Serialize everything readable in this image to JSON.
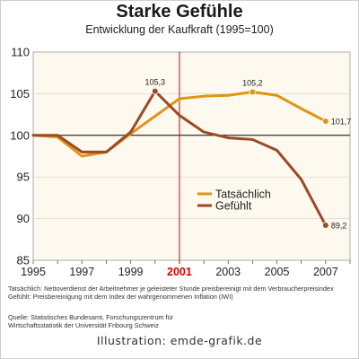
{
  "chart_data": {
    "type": "line",
    "title": "Starke Gefühle",
    "subtitle": "Entwicklung der Kaufkraft (1995=100)",
    "x": [
      1995,
      1996,
      1997,
      1998,
      1999,
      2000,
      2001,
      2002,
      2003,
      2004,
      2005,
      2006,
      2007
    ],
    "xticks": [
      "1995",
      "1997",
      "1999",
      "2001",
      "2003",
      "2005",
      "2007"
    ],
    "yticks": [
      "85",
      "90",
      "95",
      "100",
      "105",
      "110"
    ],
    "xlim": [
      1995,
      2008
    ],
    "ylim": [
      85,
      110
    ],
    "reference_line": {
      "y": 100,
      "color": "#000000"
    },
    "highlight_x": {
      "x": 2001,
      "label": "2001",
      "color": "#d40000"
    },
    "legend_position": "center-right",
    "series": [
      {
        "name": "Tatsächlich",
        "color": "#e09414",
        "values": [
          100,
          99.8,
          97.5,
          98,
          100.2,
          102.3,
          104.4,
          104.7,
          104.8,
          105.2,
          104.8,
          103.2,
          101.7
        ],
        "labels": [
          {
            "x": 2004,
            "y": 105.2,
            "text": "105,2"
          },
          {
            "x": 2007,
            "y": 101.7,
            "text": "101,7"
          }
        ]
      },
      {
        "name": "Gefühlt",
        "color": "#9c4a26",
        "values": [
          100,
          100,
          98,
          98,
          100.4,
          105.3,
          102.4,
          100.4,
          99.7,
          99.5,
          98.2,
          94.7,
          89.2
        ],
        "labels": [
          {
            "x": 2000,
            "y": 105.3,
            "text": "105,3"
          },
          {
            "x": 2007,
            "y": 89.2,
            "text": "89,2"
          }
        ]
      }
    ],
    "markers": [
      {
        "series": 0,
        "x": 2004,
        "y": 105.2
      },
      {
        "series": 0,
        "x": 2007,
        "y": 101.7
      },
      {
        "series": 1,
        "x": 2000,
        "y": 105.3
      },
      {
        "series": 1,
        "x": 2007,
        "y": 89.2
      }
    ]
  },
  "notes": [
    "Tatsächlich: Nettoverdienst der Arbeitnehmer je geleisteter Stunde preisbereinigt mit dem Verbraucherpreisindex",
    "Gefühlt: Preisbereinigung mit dem Index der wahrgenommenen Inflation (IWI)"
  ],
  "source": [
    "Quelle: Statistisches Bundesamt, Forschungszentrum für",
    "Wirtschaftsstatistik der Universität Fribourg Schweiz"
  ],
  "credit": "Illustration: emde-grafik.de"
}
